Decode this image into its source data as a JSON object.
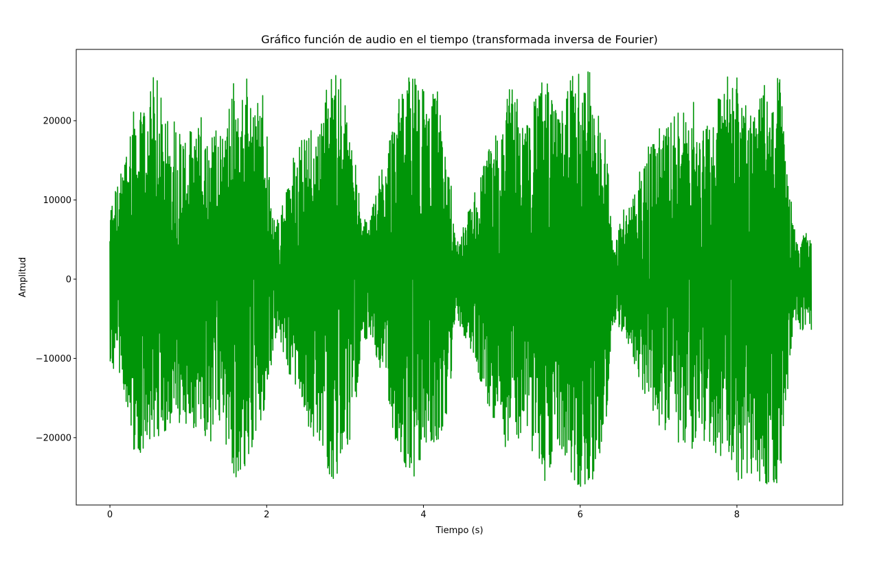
{
  "chart_data": {
    "type": "line",
    "title": "Gráfico función de audio en el tiempo (transformada inversa de Fourier)",
    "xlabel": "Tiempo (s)",
    "ylabel": "Amplitud",
    "xlim": [
      -0.43,
      9.35
    ],
    "ylim": [
      -28500,
      29000
    ],
    "x_ticks": [
      0,
      2,
      4,
      6,
      8
    ],
    "x_tick_labels": [
      "0",
      "2",
      "4",
      "6",
      "8"
    ],
    "y_ticks": [
      -20000,
      -10000,
      0,
      10000,
      20000
    ],
    "y_tick_labels": [
      "−20000",
      "−10000",
      "0",
      "10000",
      "20000"
    ],
    "grid": false,
    "legend": "none",
    "series": [
      {
        "color": "#009508",
        "x": [
          0.0,
          0.05,
          0.1,
          0.2,
          0.3,
          0.4,
          0.5,
          0.57,
          0.65,
          0.75,
          0.85,
          0.95,
          1.05,
          1.15,
          1.25,
          1.35,
          1.45,
          1.55,
          1.6,
          1.65,
          1.75,
          1.85,
          1.95,
          2.05,
          2.1,
          2.15,
          2.25,
          2.35,
          2.45,
          2.55,
          2.65,
          2.75,
          2.85,
          2.95,
          3.05,
          3.15,
          3.22,
          3.25,
          3.35,
          3.45,
          3.55,
          3.65,
          3.75,
          3.85,
          3.95,
          4.05,
          4.15,
          4.25,
          4.35,
          4.4,
          4.45,
          4.55,
          4.65,
          4.75,
          4.85,
          4.95,
          5.05,
          5.15,
          5.25,
          5.35,
          5.45,
          5.55,
          5.65,
          5.75,
          5.85,
          5.95,
          6.05,
          6.15,
          6.25,
          6.35,
          6.4,
          6.45,
          6.55,
          6.65,
          6.75,
          6.85,
          6.95,
          7.05,
          7.15,
          7.25,
          7.35,
          7.45,
          7.55,
          7.65,
          7.75,
          7.85,
          7.95,
          8.05,
          8.15,
          8.25,
          8.35,
          8.45,
          8.55,
          8.65,
          8.75,
          8.85,
          8.95
        ],
        "upper": [
          8700,
          11800,
          12000,
          16000,
          22500,
          21000,
          24000,
          26200,
          24000,
          21000,
          20500,
          18000,
          19000,
          21200,
          18000,
          20000,
          18500,
          24000,
          26200,
          22000,
          26200,
          21000,
          26200,
          12000,
          7200,
          8000,
          11000,
          16000,
          18500,
          20000,
          19000,
          24000,
          26200,
          26200,
          19000,
          14000,
          6500,
          8000,
          9000,
          14000,
          18000,
          22000,
          24000,
          26200,
          26200,
          22000,
          26200,
          18000,
          14000,
          5500,
          5000,
          8000,
          11000,
          14000,
          17000,
          20000,
          22000,
          26200,
          20000,
          20000,
          24000,
          26200,
          24000,
          20000,
          26200,
          26200,
          26200,
          26200,
          22000,
          19000,
          5000,
          4500,
          9000,
          10000,
          14000,
          16500,
          19500,
          20000,
          20000,
          21000,
          22000,
          22500,
          21000,
          20000,
          22500,
          26200,
          26200,
          26200,
          22000,
          21000,
          25000,
          26200,
          26200,
          14000,
          5000,
          6000,
          6000
        ],
        "lower": [
          -10200,
          -12300,
          -12200,
          -15000,
          -21600,
          -22500,
          -20000,
          -22000,
          -21000,
          -18500,
          -18500,
          -18000,
          -19000,
          -20000,
          -21500,
          -20500,
          -19500,
          -25000,
          -26200,
          -24000,
          -26200,
          -21000,
          -18500,
          -12000,
          -7500,
          -8000,
          -11000,
          -13500,
          -17000,
          -20000,
          -21500,
          -23000,
          -26200,
          -24000,
          -21000,
          -15000,
          -7500,
          -8000,
          -9000,
          -12000,
          -16500,
          -20500,
          -23500,
          -25000,
          -26200,
          -20000,
          -21000,
          -19000,
          -17000,
          -5500,
          -5500,
          -8000,
          -11000,
          -14000,
          -16500,
          -19500,
          -21500,
          -21000,
          -20000,
          -21500,
          -22000,
          -26200,
          -23000,
          -22000,
          -24000,
          -26200,
          -26200,
          -26200,
          -22000,
          -18000,
          -6000,
          -5500,
          -7000,
          -9500,
          -13000,
          -15000,
          -17500,
          -20000,
          -18000,
          -21000,
          -22000,
          -21500,
          -20500,
          -22000,
          -23000,
          -22000,
          -24000,
          -26200,
          -25500,
          -25000,
          -26200,
          -26200,
          -26200,
          -14000,
          -6000,
          -6500,
          -7000
        ]
      }
    ]
  }
}
